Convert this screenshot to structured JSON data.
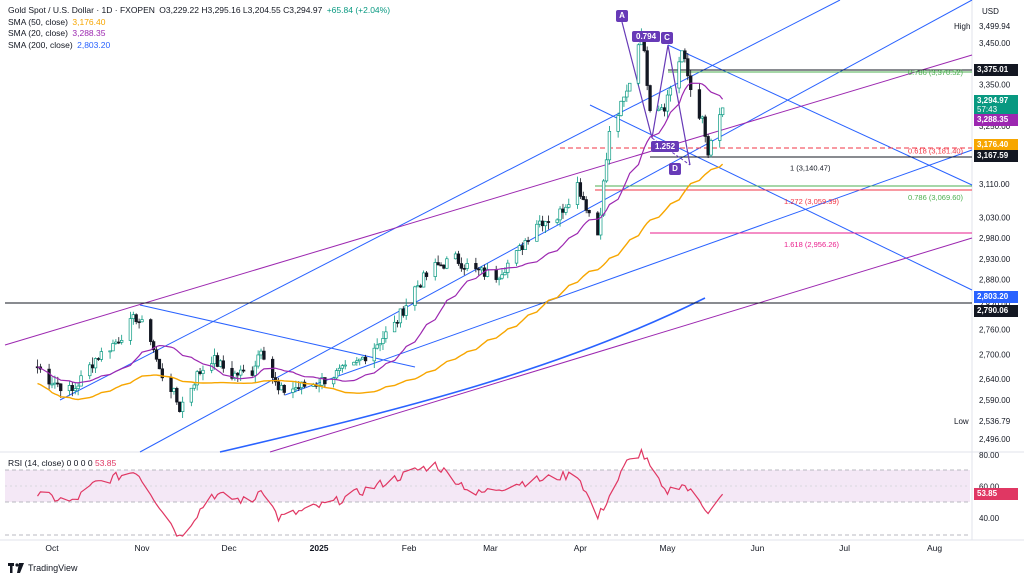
{
  "header": {
    "symbol": "Gold Spot / U.S. Dollar · 1D · FXOPEN",
    "ohlc": "O3,229.22  H3,295.16  L3,204.55  C3,294.97",
    "change": "+65.84 (+2.04%)"
  },
  "indicators": [
    {
      "label": "SMA (50, close)",
      "value": "3,176.40",
      "color": "#f7a600"
    },
    {
      "label": "SMA (20, close)",
      "value": "3,288.35",
      "color": "#9c27b0"
    },
    {
      "label": "SMA (200, close)",
      "value": "2,803.20",
      "color": "#2962ff"
    }
  ],
  "currency": "USD",
  "high_label": "High",
  "high_value": "3,499.94",
  "low_label": "Low",
  "low_value": "2,536.79",
  "rsi_legend": {
    "label": "RSI (14, close)",
    "nums": "0 0 0 0",
    "value": "53.85"
  },
  "footer": {
    "brand": "TradingView"
  },
  "price_tags": [
    {
      "value": "3,375.01",
      "bg": "#131722"
    },
    {
      "value": "3,294.97",
      "bg": "#089981"
    },
    {
      "value": "57:43",
      "bg": "#089981"
    },
    {
      "value": "3,288.35",
      "bg": "#9c27b0"
    },
    {
      "value": "3,176.40",
      "bg": "#f7a600"
    },
    {
      "value": "3,167.59",
      "bg": "#131722"
    },
    {
      "value": "2,803.20",
      "bg": "#2962ff"
    },
    {
      "value": "2,790.06",
      "bg": "#131722"
    }
  ],
  "rsi_tag": {
    "value": "53.85",
    "bg": "#e03763"
  },
  "pattern": {
    "points": [
      "A",
      "C",
      "D"
    ],
    "ratio_ac": "0.794",
    "ratio_bd": "1.252"
  },
  "fib_labels": [
    {
      "text": "0.786 (3,370.52)",
      "price": 3370.52
    },
    {
      "text": "0.618 (3,181.40)",
      "price": 3181.4
    },
    {
      "text": "1 (3,140.47)",
      "price": 3140.47
    },
    {
      "text": "0.786 (3,069.60)",
      "price": 3069.6
    },
    {
      "text": "1.272 (3,059.39)",
      "price": 3059.39
    },
    {
      "text": "1.618 (2,956.26)",
      "price": 2956.26
    }
  ],
  "chart_data": {
    "type": "candlestick",
    "title": "Gold Spot / U.S. Dollar · 1D · FXOPEN",
    "price_axis": {
      "ticks": [
        "3,450.00",
        "3,350.00",
        "3,250.00",
        "3,190.00",
        "3,110.00",
        "3,030.00",
        "2,980.00",
        "2,930.00",
        "2,880.00",
        "2,820.00",
        "2,760.00",
        "2,700.00",
        "2,640.00",
        "2,590.00",
        "2,496.00"
      ],
      "range": [
        2470,
        3520
      ]
    },
    "x_axis": {
      "labels": [
        "Oct",
        "Nov",
        "Dec",
        "2025",
        "Feb",
        "Mar",
        "Apr",
        "May",
        "Jun",
        "Jul",
        "Aug"
      ]
    },
    "close_path": [
      [
        "2024-09-26",
        2670
      ],
      [
        "2024-09-30",
        2640
      ],
      [
        "2024-10-08",
        2610
      ],
      [
        "2024-10-16",
        2690
      ],
      [
        "2024-10-23",
        2730
      ],
      [
        "2024-10-30",
        2790
      ],
      [
        "2024-11-04",
        2740
      ],
      [
        "2024-11-07",
        2660
      ],
      [
        "2024-11-11",
        2620
      ],
      [
        "2024-11-14",
        2570
      ],
      [
        "2024-11-20",
        2650
      ],
      [
        "2024-11-25",
        2690
      ],
      [
        "2024-12-02",
        2650
      ],
      [
        "2024-12-09",
        2660
      ],
      [
        "2024-12-12",
        2720
      ],
      [
        "2024-12-18",
        2610
      ],
      [
        "2024-12-24",
        2620
      ],
      [
        "2024-12-31",
        2630
      ],
      [
        "2025-01-06",
        2650
      ],
      [
        "2025-01-13",
        2670
      ],
      [
        "2025-01-20",
        2720
      ],
      [
        "2025-01-27",
        2770
      ],
      [
        "2025-02-03",
        2860
      ],
      [
        "2025-02-10",
        2910
      ],
      [
        "2025-02-17",
        2930
      ],
      [
        "2025-02-24",
        2900
      ],
      [
        "2025-03-03",
        2890
      ],
      [
        "2025-03-10",
        2940
      ],
      [
        "2025-03-17",
        3020
      ],
      [
        "2025-03-24",
        3030
      ],
      [
        "2025-03-31",
        3110
      ],
      [
        "2025-04-07",
        2990
      ],
      [
        "2025-04-11",
        3230
      ],
      [
        "2025-04-17",
        3330
      ],
      [
        "2025-04-22",
        3480
      ],
      [
        "2025-04-25",
        3300
      ],
      [
        "2025-04-30",
        3300
      ],
      [
        "2025-05-06",
        3430
      ],
      [
        "2025-05-09",
        3340
      ],
      [
        "2025-05-13",
        3260
      ],
      [
        "2025-05-15",
        3180
      ],
      [
        "2025-05-20",
        3294.97
      ]
    ],
    "sma": {
      "sma50": 3176.4,
      "sma20": 3288.35,
      "sma200": 2803.2
    },
    "rsi": {
      "ticks": [
        "80.00",
        "60.00",
        "40.00"
      ],
      "range": [
        20,
        90
      ],
      "last": 53.85,
      "path": [
        [
          "2024-09-26",
          55
        ],
        [
          "2024-10-08",
          50
        ],
        [
          "2024-10-16",
          62
        ],
        [
          "2024-10-30",
          70
        ],
        [
          "2024-11-07",
          48
        ],
        [
          "2024-11-14",
          28
        ],
        [
          "2024-11-25",
          55
        ],
        [
          "2024-12-09",
          50
        ],
        [
          "2024-12-12",
          60
        ],
        [
          "2024-12-18",
          40
        ],
        [
          "2025-01-06",
          50
        ],
        [
          "2025-01-20",
          60
        ],
        [
          "2025-02-03",
          70
        ],
        [
          "2025-02-10",
          74
        ],
        [
          "2025-02-24",
          55
        ],
        [
          "2025-03-10",
          62
        ],
        [
          "2025-03-31",
          68
        ],
        [
          "2025-04-07",
          40
        ],
        [
          "2025-04-17",
          75
        ],
        [
          "2025-04-22",
          82
        ],
        [
          "2025-04-30",
          56
        ],
        [
          "2025-05-06",
          62
        ],
        [
          "2025-05-15",
          45
        ],
        [
          "2025-05-20",
          53.85
        ]
      ]
    }
  }
}
